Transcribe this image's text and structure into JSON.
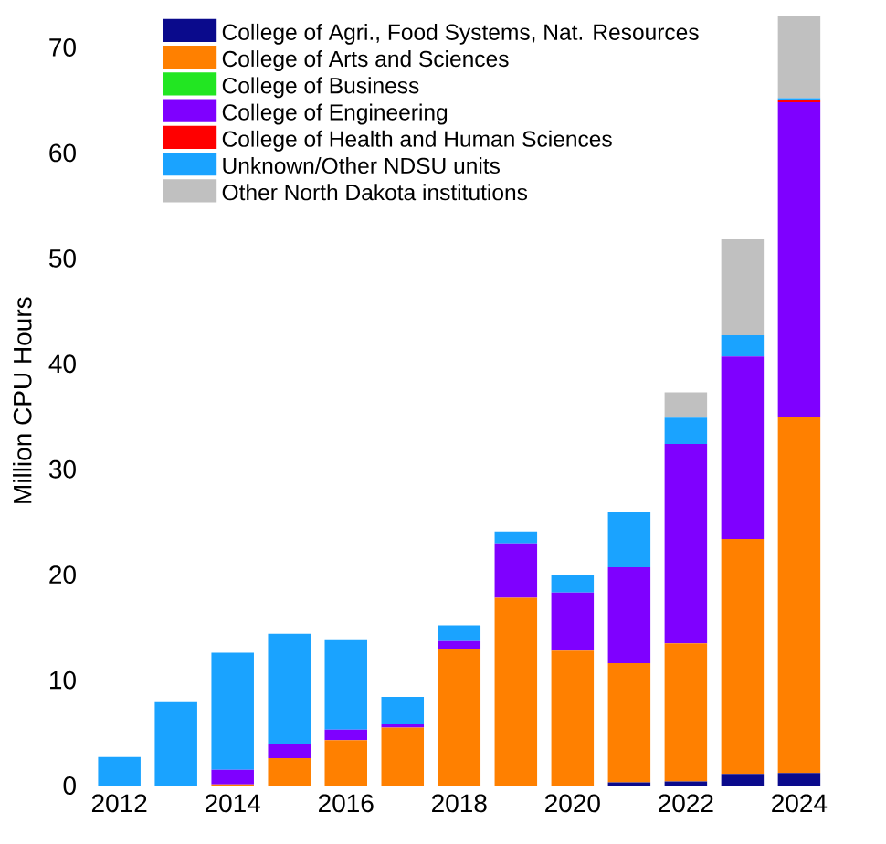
{
  "chart_data": {
    "type": "bar",
    "stacked": true,
    "ylabel": "Million CPU Hours",
    "categories": [
      "2012",
      null,
      "2014",
      null,
      "2016",
      null,
      "2018",
      null,
      "2020",
      null,
      "2022",
      null,
      "2024"
    ],
    "series": [
      {
        "name": "College of Agri., Food Systems, Nat. Resources",
        "color": "#0a0a8c",
        "values": [
          0,
          0,
          0,
          0,
          0,
          0,
          0,
          0,
          0,
          0.3,
          0.4,
          1.1,
          1.2
        ]
      },
      {
        "name": "College of Arts and Sciences",
        "color": "#ff8000",
        "values": [
          0,
          0,
          0.1,
          2.6,
          4.3,
          5.5,
          13.0,
          17.8,
          12.8,
          11.3,
          13.1,
          22.3,
          33.8
        ]
      },
      {
        "name": "College of Business",
        "color": "#22e622",
        "values": [
          0,
          0,
          0,
          0,
          0,
          0,
          0,
          0,
          0,
          0,
          0,
          0,
          0
        ]
      },
      {
        "name": "College of Engineering",
        "color": "#7f00ff",
        "values": [
          0,
          0,
          1.4,
          1.3,
          1.0,
          0.3,
          0.7,
          5.1,
          5.5,
          9.1,
          18.9,
          17.3,
          29.8
        ]
      },
      {
        "name": "College of Health and Human Sciences",
        "color": "#ff0000",
        "values": [
          0,
          0,
          0,
          0,
          0,
          0,
          0,
          0,
          0,
          0,
          0,
          0,
          0.2
        ]
      },
      {
        "name": "Unknown/Other NDSU units",
        "color": "#1aa3ff",
        "values": [
          2.7,
          8.0,
          11.1,
          10.5,
          8.5,
          2.6,
          1.5,
          1.2,
          1.7,
          5.3,
          2.5,
          2.0,
          0.2
        ]
      },
      {
        "name": "Other North Dakota institutions",
        "color": "#c0c0c0",
        "values": [
          0,
          0,
          0,
          0,
          0,
          0,
          0,
          0,
          0,
          0,
          2.4,
          9.1,
          7.8
        ]
      }
    ],
    "ylim": [
      0,
      73
    ],
    "yticks": [
      0,
      10,
      20,
      30,
      40,
      50,
      60,
      70
    ],
    "legend": "top left"
  }
}
